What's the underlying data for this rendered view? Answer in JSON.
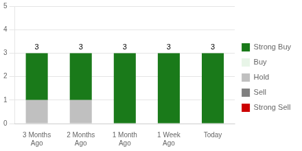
{
  "chart_data": {
    "type": "bar",
    "categories": [
      "3 Months\nAgo",
      "2 Months\nAgo",
      "1 Month\nAgo",
      "1 Week\nAgo",
      "Today"
    ],
    "series": [
      {
        "name": "Strong Buy",
        "color": "#1a7a1a",
        "values": [
          2,
          2,
          3,
          3,
          3
        ]
      },
      {
        "name": "Buy",
        "color": "#e8f5e8",
        "values": [
          0,
          0,
          0,
          0,
          0
        ]
      },
      {
        "name": "Hold",
        "color": "#c0c0c0",
        "values": [
          1,
          1,
          0,
          0,
          0
        ]
      },
      {
        "name": "Sell",
        "color": "#808080",
        "values": [
          0,
          0,
          0,
          0,
          0
        ]
      },
      {
        "name": "Strong Sell",
        "color": "#cc0000",
        "values": [
          0,
          0,
          0,
          0,
          0
        ]
      }
    ],
    "totals": [
      3,
      3,
      3,
      3,
      3
    ],
    "stacked": true,
    "ylim": [
      0,
      5
    ],
    "yticks": [
      0,
      1,
      2,
      3,
      4,
      5
    ],
    "grid": true,
    "legend": "right"
  }
}
